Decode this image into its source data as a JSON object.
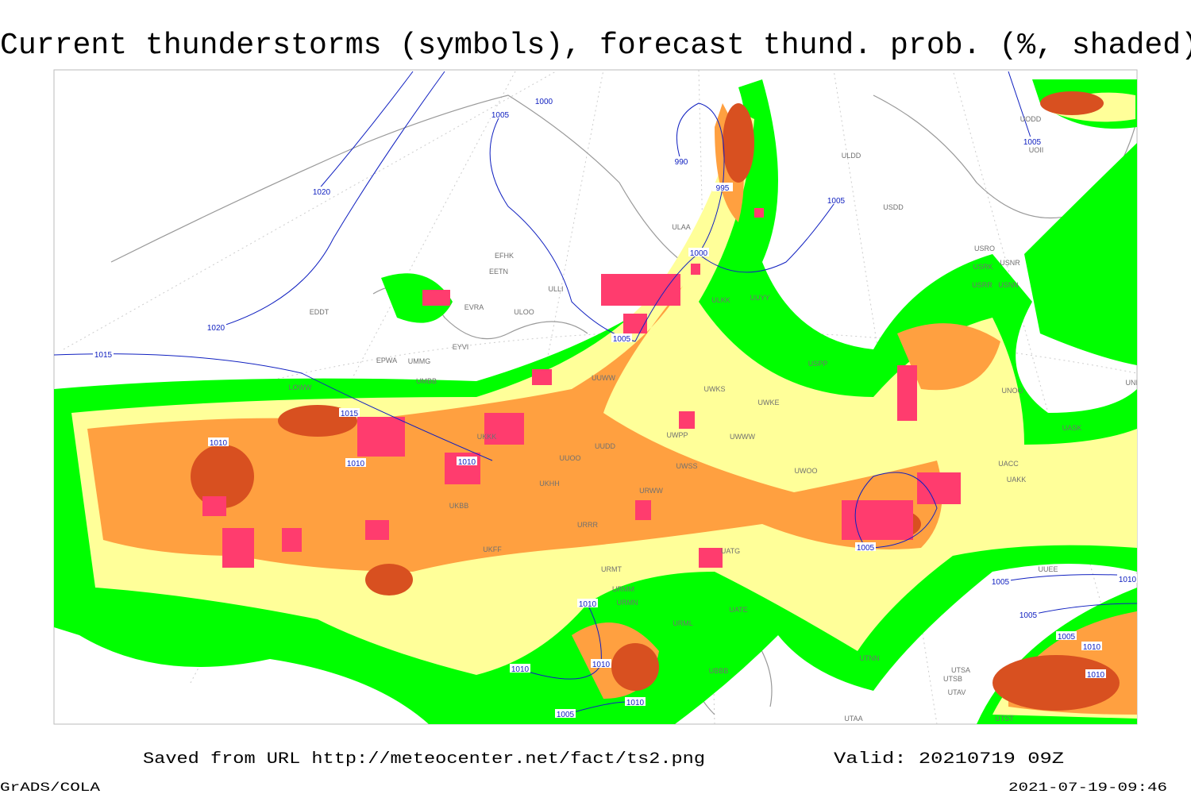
{
  "title": "Current thunderstorms (symbols), forecast thund. prob. (%, shaded)",
  "footer": {
    "source": "Saved from URL http://meteocenter.net/fact/ts2.png",
    "valid": "Valid: 20210719 09Z",
    "software": "GrADS/COLA",
    "timestamp": "2021-07-19-09:46"
  },
  "isobar_labels": [
    "1000",
    "1005",
    "990",
    "995",
    "1020",
    "1020",
    "1015",
    "1005",
    "1005",
    "1000",
    "1005",
    "1015",
    "1010",
    "1010",
    "1010",
    "1005",
    "1005",
    "1010",
    "1005",
    "1010",
    "1005",
    "1010",
    "1010",
    "1010",
    "1010",
    "1010",
    "1010",
    "1005"
  ],
  "stations": [
    "ULDD",
    "USDD",
    "ULAA",
    "USRO",
    "USRK",
    "USNR",
    "USNN",
    "USRR",
    "ULKK",
    "UUYY",
    "ULLI",
    "ULOO",
    "EETN",
    "EFHK",
    "EVRA",
    "EYVI",
    "UMMG",
    "EPWA",
    "UMBB",
    "EDDT",
    "UUWW",
    "UWKS",
    "UWKE",
    "UNOO",
    "UNBB",
    "UASK",
    "UACC",
    "UAKK",
    "UWOO",
    "URRR",
    "UKFF",
    "URMT",
    "URMM",
    "URMN",
    "URML",
    "UATG",
    "UATE",
    "UTNN",
    "UTSA",
    "UTSB",
    "UTAV",
    "UTAA",
    "UTST",
    "UBBB",
    "UKBB",
    "UUOO",
    "UUDD",
    "UWPP",
    "UWWW",
    "UWSS",
    "URWW",
    "UODD",
    "UOII",
    "USPP",
    "UUEE",
    "LOWW",
    "UKKK",
    "UKHH"
  ]
}
